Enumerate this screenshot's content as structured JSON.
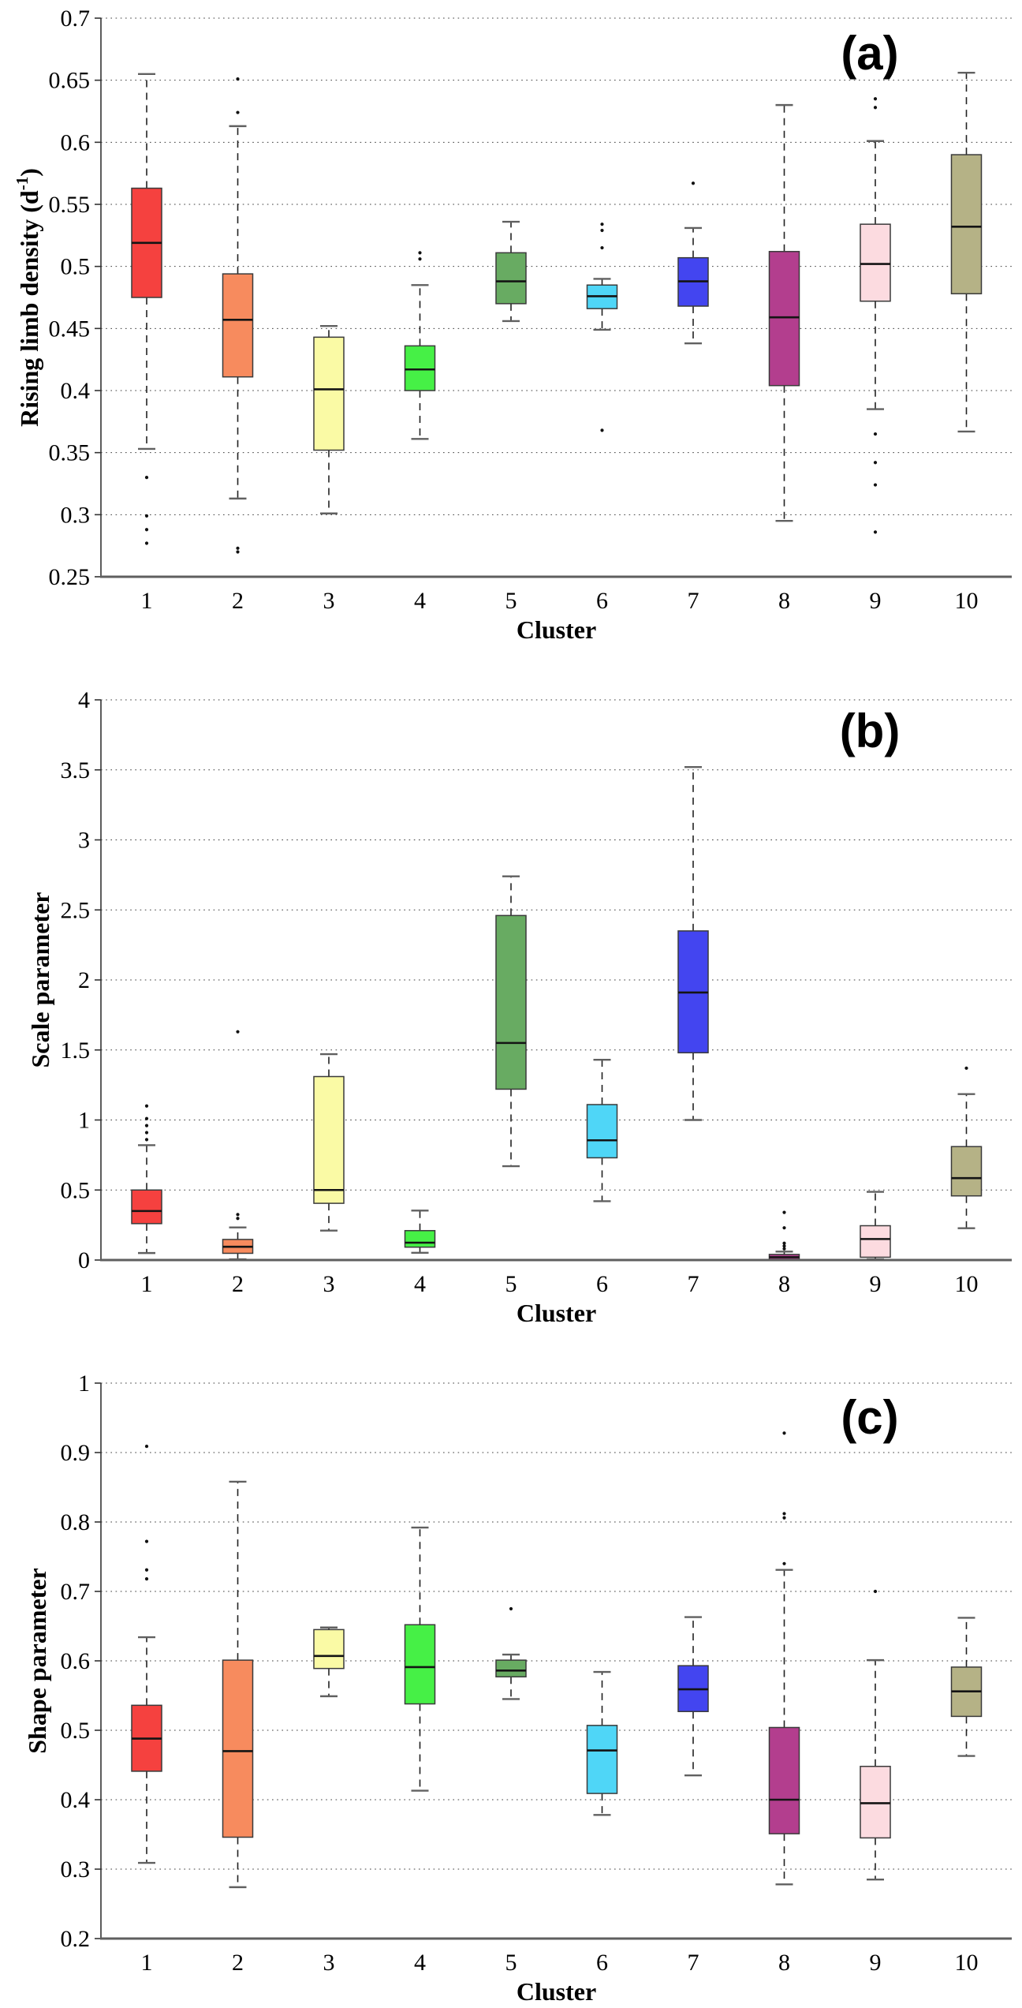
{
  "figure": {
    "background": "#ffffff",
    "panels_count": 3
  },
  "chart_data": [
    {
      "type": "box",
      "panel_label": "(a)",
      "ylabel": "Rising limb density (d",
      "ylabel_sup": "-1",
      "ylabel_suffix": ")",
      "xlabel": "Cluster",
      "ylim": [
        0.25,
        0.7
      ],
      "yticks": [
        0.7,
        0.65,
        0.6,
        0.55,
        0.5,
        0.45,
        0.4,
        0.35,
        0.3,
        0.25
      ],
      "ytick_labels": [
        "0.7",
        "0.65",
        "0.6",
        "0.55",
        "0.5",
        "0.45",
        "0.4",
        "0.35",
        "0.3",
        "0.25"
      ],
      "categories": [
        "1",
        "2",
        "3",
        "4",
        "5",
        "6",
        "7",
        "8",
        "9",
        "10"
      ],
      "grid": "horizontal-dotted",
      "legend": "none",
      "boxes": [
        {
          "cluster": "1",
          "color": "#f5413f",
          "whisker_low": 0.353,
          "q1": 0.475,
          "median": 0.519,
          "q3": 0.563,
          "whisker_high": 0.655,
          "outliers": [
            0.33,
            0.299,
            0.288,
            0.277
          ]
        },
        {
          "cluster": "2",
          "color": "#f78b5e",
          "whisker_low": 0.313,
          "q1": 0.411,
          "median": 0.457,
          "q3": 0.494,
          "whisker_high": 0.613,
          "outliers": [
            0.651,
            0.624,
            0.273,
            0.27
          ]
        },
        {
          "cluster": "3",
          "color": "#fafaa5",
          "whisker_low": 0.301,
          "q1": 0.352,
          "median": 0.401,
          "q3": 0.443,
          "whisker_high": 0.452,
          "outliers": []
        },
        {
          "cluster": "4",
          "color": "#46f046",
          "whisker_low": 0.361,
          "q1": 0.4,
          "median": 0.417,
          "q3": 0.436,
          "whisker_high": 0.485,
          "outliers": [
            0.511,
            0.506
          ]
        },
        {
          "cluster": "5",
          "color": "#68ab62",
          "whisker_low": 0.456,
          "q1": 0.47,
          "median": 0.488,
          "q3": 0.511,
          "whisker_high": 0.536,
          "outliers": []
        },
        {
          "cluster": "6",
          "color": "#4fd6f7",
          "whisker_low": 0.449,
          "q1": 0.466,
          "median": 0.476,
          "q3": 0.485,
          "whisker_high": 0.49,
          "outliers": [
            0.534,
            0.529,
            0.515,
            0.368
          ]
        },
        {
          "cluster": "7",
          "color": "#4345f0",
          "whisker_low": 0.438,
          "q1": 0.468,
          "median": 0.488,
          "q3": 0.507,
          "whisker_high": 0.531,
          "outliers": [
            0.567
          ]
        },
        {
          "cluster": "8",
          "color": "#b33e8e",
          "whisker_low": 0.295,
          "q1": 0.404,
          "median": 0.459,
          "q3": 0.512,
          "whisker_high": 0.63,
          "outliers": []
        },
        {
          "cluster": "9",
          "color": "#fcdbe0",
          "whisker_low": 0.385,
          "q1": 0.472,
          "median": 0.502,
          "q3": 0.534,
          "whisker_high": 0.601,
          "outliers": [
            0.635,
            0.628,
            0.365,
            0.342,
            0.324,
            0.286
          ]
        },
        {
          "cluster": "10",
          "color": "#b5b286",
          "whisker_low": 0.367,
          "q1": 0.478,
          "median": 0.532,
          "q3": 0.59,
          "whisker_high": 0.656,
          "outliers": []
        }
      ]
    },
    {
      "type": "box",
      "panel_label": "(b)",
      "ylabel": "Scale parameter",
      "ylabel_sup": "",
      "ylabel_suffix": "",
      "xlabel": "Cluster",
      "ylim": [
        0,
        4
      ],
      "yticks": [
        4,
        3.5,
        3,
        2.5,
        2,
        1.5,
        1,
        0.5,
        0
      ],
      "ytick_labels": [
        "4",
        "3.5",
        "3",
        "2.5",
        "2",
        "1.5",
        "1",
        "0.5",
        "0"
      ],
      "categories": [
        "1",
        "2",
        "3",
        "4",
        "5",
        "6",
        "7",
        "8",
        "9",
        "10"
      ],
      "grid": "horizontal-dotted",
      "legend": "none",
      "boxes": [
        {
          "cluster": "1",
          "color": "#f5413f",
          "whisker_low": 0.05,
          "q1": 0.26,
          "median": 0.35,
          "q3": 0.5,
          "whisker_high": 0.82,
          "outliers": [
            1.1,
            1.01,
            0.96,
            0.91,
            0.86
          ]
        },
        {
          "cluster": "2",
          "color": "#f78b5e",
          "whisker_low": 0.005,
          "q1": 0.048,
          "median": 0.095,
          "q3": 0.147,
          "whisker_high": 0.233,
          "outliers": [
            1.63,
            0.325,
            0.297
          ]
        },
        {
          "cluster": "3",
          "color": "#fafaa5",
          "whisker_low": 0.21,
          "q1": 0.405,
          "median": 0.5,
          "q3": 1.31,
          "whisker_high": 1.47,
          "outliers": []
        },
        {
          "cluster": "4",
          "color": "#46f046",
          "whisker_low": 0.052,
          "q1": 0.092,
          "median": 0.124,
          "q3": 0.21,
          "whisker_high": 0.353,
          "outliers": []
        },
        {
          "cluster": "5",
          "color": "#68ab62",
          "whisker_low": 0.67,
          "q1": 1.22,
          "median": 1.55,
          "q3": 2.46,
          "whisker_high": 2.74,
          "outliers": []
        },
        {
          "cluster": "6",
          "color": "#4fd6f7",
          "whisker_low": 0.42,
          "q1": 0.73,
          "median": 0.855,
          "q3": 1.11,
          "whisker_high": 1.43,
          "outliers": []
        },
        {
          "cluster": "7",
          "color": "#4345f0",
          "whisker_low": 1.0,
          "q1": 1.48,
          "median": 1.91,
          "q3": 2.35,
          "whisker_high": 3.52,
          "outliers": []
        },
        {
          "cluster": "8",
          "color": "#b33e8e",
          "whisker_low": 0.0,
          "q1": 0.005,
          "median": 0.02,
          "q3": 0.04,
          "whisker_high": 0.06,
          "outliers": [
            0.34,
            0.23,
            0.12,
            0.1,
            0.08
          ]
        },
        {
          "cluster": "9",
          "color": "#fcdbe0",
          "whisker_low": 0.005,
          "q1": 0.02,
          "median": 0.15,
          "q3": 0.245,
          "whisker_high": 0.487,
          "outliers": []
        },
        {
          "cluster": "10",
          "color": "#b5b286",
          "whisker_low": 0.227,
          "q1": 0.458,
          "median": 0.585,
          "q3": 0.81,
          "whisker_high": 1.185,
          "outliers": [
            1.37
          ]
        }
      ]
    },
    {
      "type": "box",
      "panel_label": "(c)",
      "ylabel": "Shape parameter",
      "ylabel_sup": "",
      "ylabel_suffix": "",
      "xlabel": "Cluster",
      "ylim": [
        0.2,
        1
      ],
      "yticks": [
        1,
        0.9,
        0.8,
        0.7,
        0.6,
        0.5,
        0.4,
        0.3,
        0.2
      ],
      "ytick_labels": [
        "1",
        "0.9",
        "0.8",
        "0.7",
        "0.6",
        "0.5",
        "0.4",
        "0.3",
        "0.2"
      ],
      "categories": [
        "1",
        "2",
        "3",
        "4",
        "5",
        "6",
        "7",
        "8",
        "9",
        "10"
      ],
      "grid": "horizontal-dotted",
      "legend": "none",
      "boxes": [
        {
          "cluster": "1",
          "color": "#f5413f",
          "whisker_low": 0.309,
          "q1": 0.441,
          "median": 0.488,
          "q3": 0.536,
          "whisker_high": 0.634,
          "outliers": [
            0.909,
            0.772,
            0.731,
            0.718
          ]
        },
        {
          "cluster": "2",
          "color": "#f78b5e",
          "whisker_low": 0.274,
          "q1": 0.346,
          "median": 0.47,
          "q3": 0.601,
          "whisker_high": 0.858,
          "outliers": []
        },
        {
          "cluster": "3",
          "color": "#fafaa5",
          "whisker_low": 0.549,
          "q1": 0.589,
          "median": 0.607,
          "q3": 0.645,
          "whisker_high": 0.648,
          "outliers": []
        },
        {
          "cluster": "4",
          "color": "#46f046",
          "whisker_low": 0.413,
          "q1": 0.538,
          "median": 0.591,
          "q3": 0.652,
          "whisker_high": 0.792,
          "outliers": []
        },
        {
          "cluster": "5",
          "color": "#68ab62",
          "whisker_low": 0.545,
          "q1": 0.577,
          "median": 0.586,
          "q3": 0.601,
          "whisker_high": 0.609,
          "outliers": [
            0.675
          ]
        },
        {
          "cluster": "6",
          "color": "#4fd6f7",
          "whisker_low": 0.378,
          "q1": 0.409,
          "median": 0.471,
          "q3": 0.507,
          "whisker_high": 0.584,
          "outliers": []
        },
        {
          "cluster": "7",
          "color": "#4345f0",
          "whisker_low": 0.435,
          "q1": 0.527,
          "median": 0.559,
          "q3": 0.593,
          "whisker_high": 0.663,
          "outliers": []
        },
        {
          "cluster": "8",
          "color": "#b33e8e",
          "whisker_low": 0.278,
          "q1": 0.351,
          "median": 0.4,
          "q3": 0.504,
          "whisker_high": 0.731,
          "outliers": [
            0.928,
            0.812,
            0.806,
            0.74
          ]
        },
        {
          "cluster": "9",
          "color": "#fcdbe0",
          "whisker_low": 0.285,
          "q1": 0.345,
          "median": 0.395,
          "q3": 0.448,
          "whisker_high": 0.601,
          "outliers": [
            0.7
          ]
        },
        {
          "cluster": "10",
          "color": "#b5b286",
          "whisker_low": 0.463,
          "q1": 0.52,
          "median": 0.556,
          "q3": 0.591,
          "whisker_high": 0.662,
          "outliers": []
        }
      ]
    }
  ]
}
